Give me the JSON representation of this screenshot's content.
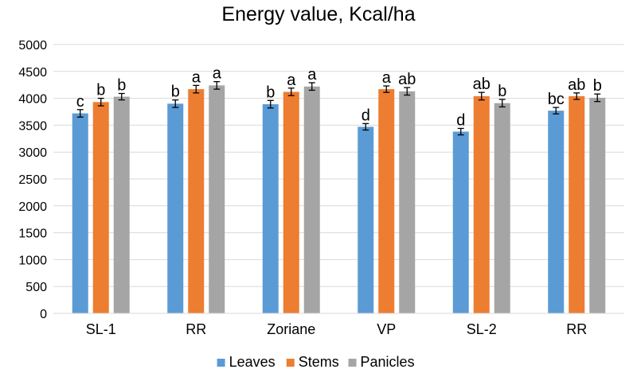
{
  "chart_data": {
    "type": "bar",
    "title": "Energy value, Kcal/ha",
    "xlabel": "",
    "ylabel": "",
    "categories": [
      "SL-1",
      "RR",
      "Zoriane",
      "VP",
      "SL-2",
      "RR"
    ],
    "ylim": [
      0,
      5000
    ],
    "yticks": [
      0,
      500,
      1000,
      1500,
      2000,
      2500,
      3000,
      3500,
      4000,
      4500,
      5000
    ],
    "grid": true,
    "legend_position": "bottom",
    "series": [
      {
        "name": "Leaves",
        "color": "#5b9bd5",
        "values": [
          3720,
          3900,
          3890,
          3470,
          3380,
          3770
        ],
        "errors": [
          70,
          70,
          70,
          60,
          60,
          60
        ],
        "labels": [
          "c",
          "b",
          "b",
          "d",
          "d",
          "bc"
        ]
      },
      {
        "name": "Stems",
        "color": "#ed7d31",
        "values": [
          3930,
          4170,
          4120,
          4170,
          4040,
          4040
        ],
        "errors": [
          70,
          70,
          70,
          60,
          70,
          60
        ],
        "labels": [
          "b",
          "a",
          "a",
          "a",
          "ab",
          "ab"
        ]
      },
      {
        "name": "Panicles",
        "color": "#a5a5a5",
        "values": [
          4030,
          4240,
          4220,
          4130,
          3910,
          4010
        ],
        "errors": [
          60,
          70,
          70,
          70,
          70,
          70
        ],
        "labels": [
          "b",
          "a",
          "a",
          "ab",
          "b",
          "b"
        ]
      }
    ]
  }
}
